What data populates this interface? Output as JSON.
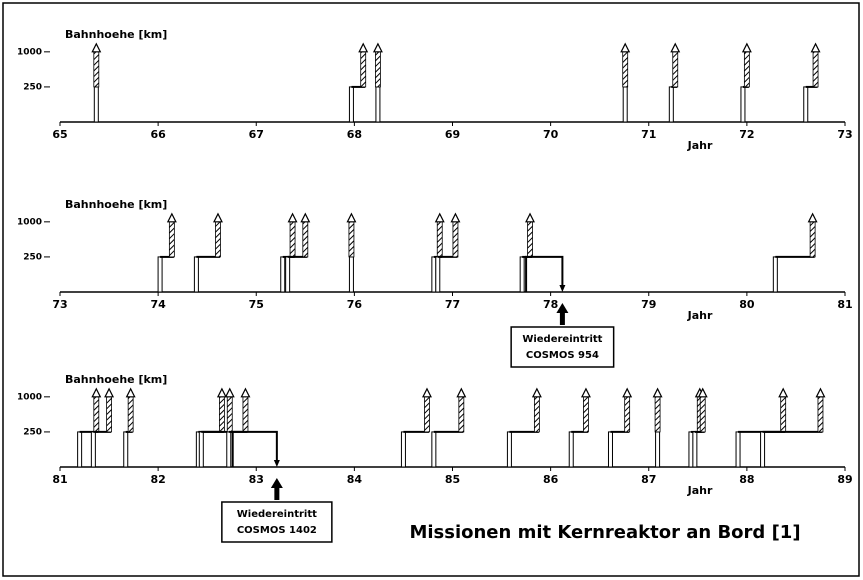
{
  "title": "Missionen mit Kernreaktor an Bord [1]",
  "chart_data": [
    {
      "type": "mission",
      "ylabel": "Bahnhoehe [km]",
      "xlabel": "Jahr",
      "xlim": [
        65,
        73
      ],
      "xticks": [
        65,
        66,
        67,
        68,
        69,
        70,
        71,
        72,
        73
      ],
      "ylim": [
        0,
        1300
      ],
      "yscale": "sqrt",
      "yticks": [
        250,
        1000
      ],
      "missions": [
        {
          "launch": 65.37,
          "boost": 65.37
        },
        {
          "launch": 67.97,
          "boost": 68.09
        },
        {
          "launch": 68.24,
          "boost": 68.24
        },
        {
          "launch": 70.76,
          "boost": 70.76
        },
        {
          "launch": 71.23,
          "boost": 71.27
        },
        {
          "launch": 71.96,
          "boost": 72.0
        },
        {
          "launch": 72.6,
          "boost": 72.7
        }
      ]
    },
    {
      "type": "mission",
      "ylabel": "Bahnhoehe [km]",
      "xlabel": "Jahr",
      "xlim": [
        73,
        81
      ],
      "xticks": [
        73,
        74,
        75,
        76,
        77,
        78,
        79,
        80,
        81
      ],
      "ylim": [
        0,
        1300
      ],
      "yscale": "sqrt",
      "yticks": [
        250,
        1000
      ],
      "missions": [
        {
          "launch": 74.02,
          "boost": 74.14
        },
        {
          "launch": 74.39,
          "boost": 74.61
        },
        {
          "launch": 75.27,
          "boost": 75.37
        },
        {
          "launch": 75.32,
          "boost": 75.5
        },
        {
          "launch": 75.97,
          "boost": 75.97
        },
        {
          "launch": 76.81,
          "boost": 76.87
        },
        {
          "launch": 76.85,
          "boost": 77.03
        },
        {
          "launch": 77.71,
          "boost": 77.79
        },
        {
          "launch": 77.75,
          "reentry": 78.12,
          "label": [
            "Wiedereintritt",
            "COSMOS  954"
          ]
        },
        {
          "launch": 80.29,
          "boost": 80.67
        }
      ]
    },
    {
      "type": "mission",
      "ylabel": "Bahnhoehe [km]",
      "xlabel": "Jahr",
      "xlim": [
        81,
        89
      ],
      "xticks": [
        81,
        82,
        83,
        84,
        85,
        86,
        87,
        88,
        89
      ],
      "ylim": [
        0,
        1300
      ],
      "yscale": "sqrt",
      "yticks": [
        250,
        1000
      ],
      "missions": [
        {
          "launch": 81.2,
          "boost": 81.37
        },
        {
          "launch": 81.34,
          "boost": 81.5
        },
        {
          "launch": 81.67,
          "boost": 81.72
        },
        {
          "launch": 82.41,
          "boost": 82.65
        },
        {
          "launch": 82.44,
          "boost": 82.73
        },
        {
          "launch": 82.72,
          "boost": 82.89
        },
        {
          "launch": 82.76,
          "reentry": 83.21,
          "label": [
            "Wiedereintritt",
            "COSMOS  1402"
          ]
        },
        {
          "launch": 84.5,
          "boost": 84.74
        },
        {
          "launch": 84.81,
          "boost": 85.09
        },
        {
          "launch": 85.58,
          "boost": 85.86
        },
        {
          "launch": 86.21,
          "boost": 86.36
        },
        {
          "launch": 86.61,
          "boost": 86.78
        },
        {
          "launch": 87.09,
          "boost": 87.09
        },
        {
          "launch": 87.43,
          "boost": 87.52
        },
        {
          "launch": 87.47,
          "boost": 87.55
        },
        {
          "launch": 87.91,
          "boost": 88.37
        },
        {
          "launch": 88.16,
          "boost": 88.75
        }
      ]
    }
  ]
}
